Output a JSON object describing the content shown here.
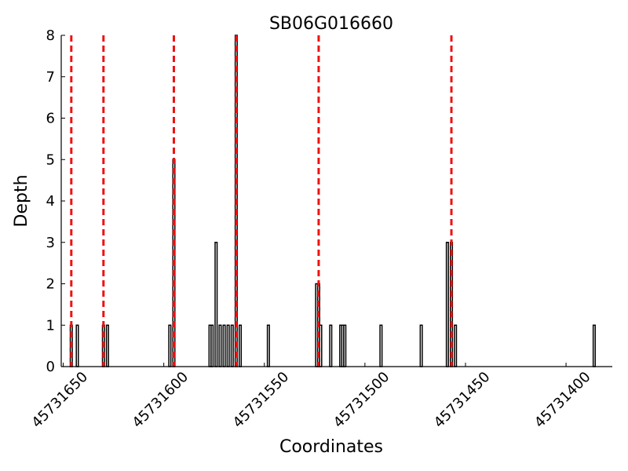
{
  "chart_data": {
    "type": "bar",
    "title": "SB06G016660",
    "xlabel": "Coordinates",
    "ylabel": "Depth",
    "x": [
      45731646,
      45731643,
      45731630,
      45731628,
      45731597,
      45731595,
      45731577,
      45731576,
      45731574,
      45731572,
      45731570,
      45731568,
      45731566,
      45731564,
      45731562,
      45731548,
      45731524,
      45731523,
      45731522,
      45731517,
      45731512,
      45731511,
      45731510,
      45731492,
      45731472,
      45731459,
      45731457,
      45731455,
      45731386
    ],
    "values": [
      1,
      1,
      1,
      1,
      1,
      5,
      1,
      1,
      3,
      1,
      1,
      1,
      1,
      8,
      1,
      1,
      2,
      2,
      1,
      1,
      1,
      1,
      1,
      1,
      1,
      3,
      3,
      1,
      1
    ],
    "color": "#000000",
    "vlines": [
      45731646,
      45731630,
      45731595,
      45731564,
      45731523,
      45731457
    ],
    "vline_color": "#ee1111",
    "xlim": [
      45731651,
      45731377
    ],
    "xticks": [
      45731650,
      45731600,
      45731550,
      45731500,
      45731450,
      45731400
    ],
    "ylim": [
      0,
      8
    ],
    "yticks": [
      0,
      1,
      2,
      3,
      4,
      5,
      6,
      7,
      8
    ]
  }
}
